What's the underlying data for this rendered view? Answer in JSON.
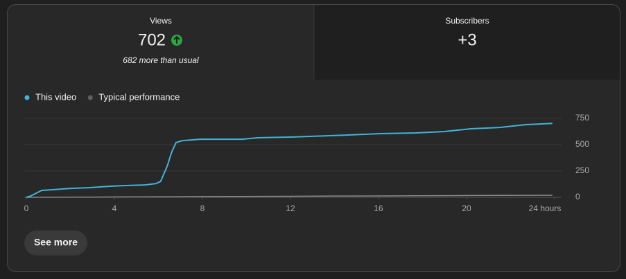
{
  "tabs": {
    "views": {
      "label": "Views",
      "value": "702",
      "note": "682 more than usual"
    },
    "subscribers": {
      "label": "Subscribers",
      "value": "+3"
    }
  },
  "chart_data": {
    "type": "line",
    "x": [
      0,
      0.2,
      0.7,
      1.2,
      2,
      2.9,
      3.8,
      4.5,
      5.4,
      5.9,
      6.1,
      6.4,
      6.6,
      6.8,
      7.1,
      7.9,
      9.8,
      10.5,
      12,
      13.9,
      16.1,
      17.7,
      19,
      20.2,
      21.5,
      22.7,
      23.9
    ],
    "series": [
      {
        "name": "This video",
        "color": "#41b4d8",
        "values": [
          0,
          13,
          66,
          72,
          85,
          92,
          105,
          112,
          118,
          131,
          151,
          296,
          428,
          520,
          539,
          552,
          552,
          566,
          572,
          586,
          605,
          612,
          625,
          651,
          664,
          691,
          702
        ]
      },
      {
        "name": "Typical performance",
        "color": "#8a8a8a",
        "values": [
          0,
          0,
          1,
          1,
          2,
          2,
          3,
          4,
          4,
          5,
          5,
          5,
          5,
          6,
          6,
          7,
          8,
          9,
          10,
          12,
          13,
          15,
          16,
          17,
          18,
          19,
          20
        ]
      }
    ],
    "xlim": [
      0,
      24
    ],
    "xticks": [
      0,
      4,
      8,
      12,
      16,
      20,
      {
        "value": 24,
        "label": "24 hours"
      }
    ],
    "ylim": [
      0,
      750
    ],
    "yticks": [
      0,
      250,
      500,
      750
    ],
    "grid": true
  },
  "button": {
    "label": "See more"
  }
}
